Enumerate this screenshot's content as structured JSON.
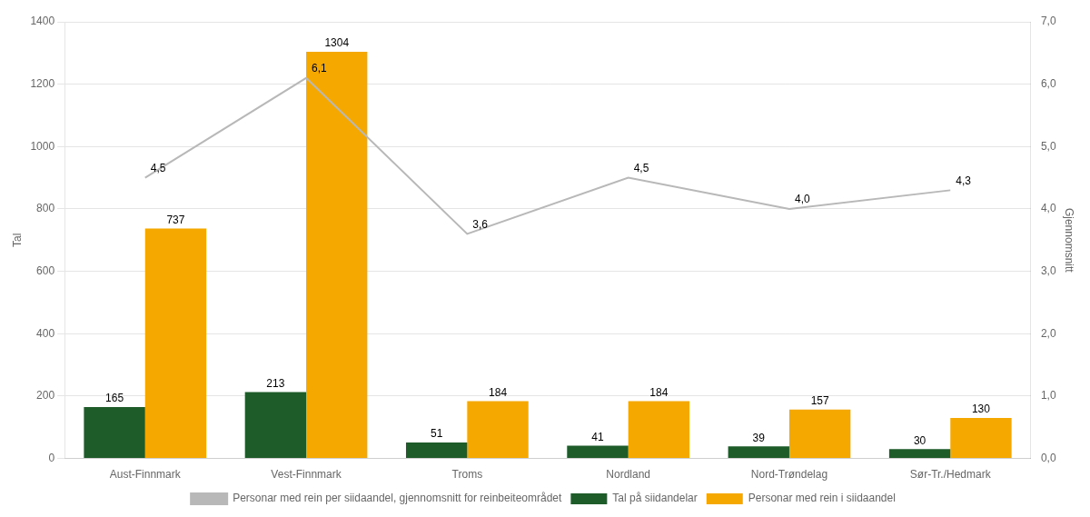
{
  "chart_data": {
    "type": "bar",
    "categories": [
      "Aust-Finnmark",
      "Vest-Finnmark",
      "Troms",
      "Nordland",
      "Nord-Trøndelag",
      "Sør-Tr./Hedmark"
    ],
    "series": [
      {
        "name": "Tal på siidandelar",
        "color": "#1e5c2a",
        "values": [
          165,
          213,
          51,
          41,
          39,
          30
        ]
      },
      {
        "name": "Personar med rein i siidaandel",
        "color": "#f5a800",
        "values": [
          737,
          1304,
          184,
          184,
          157,
          130
        ]
      },
      {
        "name": "Personar med rein per siidaandel, gjennomsnitt for reinbeiteområdet",
        "type": "line",
        "axis": "y2",
        "color": "#b8b8b8",
        "values": [
          4.5,
          6.1,
          3.6,
          4.5,
          4.0,
          4.3
        ],
        "value_labels": [
          "4,5",
          "6,1",
          "3,6",
          "4,5",
          "4,0",
          "4,3"
        ]
      }
    ],
    "ylabel": "Tal",
    "y2label": "Gjennomsnitt",
    "ylim": [
      0,
      1400
    ],
    "yticks": [
      0,
      200,
      400,
      600,
      800,
      1000,
      1200,
      1400
    ],
    "y2lim": [
      0,
      7.0
    ],
    "y2ticks": [
      {
        "value": 0.0,
        "label": "0,0"
      },
      {
        "value": 1.0,
        "label": "1,0"
      },
      {
        "value": 2.0,
        "label": "2,0"
      },
      {
        "value": 3.0,
        "label": "3,0"
      },
      {
        "value": 4.0,
        "label": "4,0"
      },
      {
        "value": 5.0,
        "label": "5,0"
      },
      {
        "value": 6.0,
        "label": "6,0"
      },
      {
        "value": 7.0,
        "label": "7,0"
      }
    ],
    "grid": true,
    "legend": "bottom",
    "data_labels": true
  }
}
